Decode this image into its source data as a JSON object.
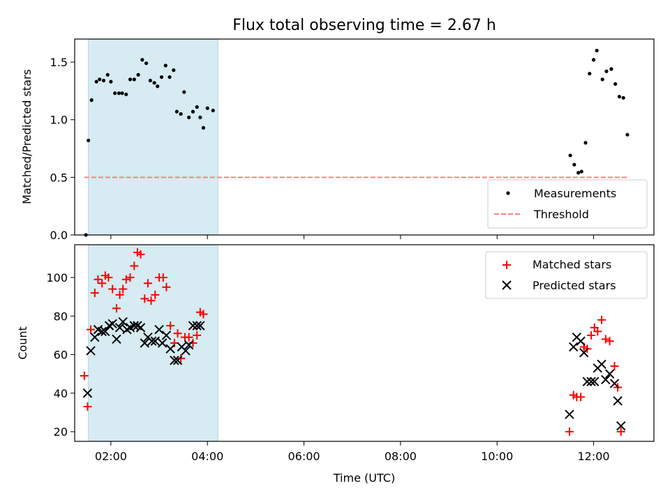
{
  "chart_data": [
    {
      "type": "scatter",
      "title": "Flux total observing time = 2.67 h",
      "xlabel": "",
      "ylabel": "Matched/Predicted stars",
      "xlim": [
        "01:15",
        "13:15"
      ],
      "ylim": [
        0,
        1.7
      ],
      "yticks": [
        "0.0",
        "0.5",
        "1.0",
        "1.5"
      ],
      "highlight_span": {
        "start": "01:32",
        "end": "04:13",
        "color": "#add8e6"
      },
      "legend_position": "lower-right",
      "legend": [
        "Measurements",
        "Threshold"
      ],
      "series": [
        {
          "name": "Measurements",
          "marker": "dot",
          "color": "#000000",
          "points": [
            [
              "01:29",
              0.0
            ],
            [
              "01:32",
              0.82
            ],
            [
              "01:36",
              1.17
            ],
            [
              "01:42",
              1.33
            ],
            [
              "01:46",
              1.35
            ],
            [
              "01:51",
              1.34
            ],
            [
              "01:56",
              1.39
            ],
            [
              "02:00",
              1.33
            ],
            [
              "02:05",
              1.23
            ],
            [
              "02:10",
              1.23
            ],
            [
              "02:14",
              1.23
            ],
            [
              "02:19",
              1.22
            ],
            [
              "02:24",
              1.35
            ],
            [
              "02:29",
              1.35
            ],
            [
              "02:34",
              1.39
            ],
            [
              "02:39",
              1.52
            ],
            [
              "02:44",
              1.49
            ],
            [
              "02:49",
              1.34
            ],
            [
              "02:54",
              1.32
            ],
            [
              "02:58",
              1.29
            ],
            [
              "03:03",
              1.37
            ],
            [
              "03:08",
              1.47
            ],
            [
              "03:13",
              1.37
            ],
            [
              "03:18",
              1.43
            ],
            [
              "03:22",
              1.07
            ],
            [
              "03:27",
              1.05
            ],
            [
              "03:31",
              1.24
            ],
            [
              "03:37",
              1.02
            ],
            [
              "03:42",
              1.07
            ],
            [
              "03:47",
              1.11
            ],
            [
              "03:51",
              1.02
            ],
            [
              "03:55",
              0.93
            ],
            [
              "04:00",
              1.1
            ],
            [
              "04:07",
              1.08
            ],
            [
              "11:31",
              0.69
            ],
            [
              "11:36",
              0.61
            ],
            [
              "11:41",
              0.54
            ],
            [
              "11:45",
              0.55
            ],
            [
              "11:50",
              0.8
            ],
            [
              "11:55",
              1.4
            ],
            [
              "12:00",
              1.52
            ],
            [
              "12:04",
              1.6
            ],
            [
              "12:11",
              1.35
            ],
            [
              "12:16",
              1.42
            ],
            [
              "12:22",
              1.44
            ],
            [
              "12:27",
              1.31
            ],
            [
              "12:32",
              1.2
            ],
            [
              "12:37",
              1.19
            ],
            [
              "12:42",
              0.87
            ]
          ]
        },
        {
          "name": "Threshold",
          "type": "dashed-line",
          "color": "#ff7f7f",
          "points": [
            [
              "01:27",
              0.5
            ],
            [
              "12:43",
              0.5
            ]
          ]
        }
      ]
    },
    {
      "type": "scatter",
      "title": "",
      "xlabel": "Time (UTC)",
      "ylabel": "Count",
      "xlim": [
        "01:15",
        "13:15"
      ],
      "xticks": [
        "02:00",
        "04:00",
        "06:00",
        "08:00",
        "10:00",
        "12:00"
      ],
      "ylim": [
        15,
        117
      ],
      "yticks": [
        20,
        40,
        60,
        80,
        100
      ],
      "highlight_span": {
        "start": "01:32",
        "end": "04:13",
        "color": "#add8e6"
      },
      "legend_position": "upper-right",
      "legend": [
        "Matched stars",
        "Predicted stars"
      ],
      "series": [
        {
          "name": "Matched stars",
          "marker": "plus",
          "color": "#ff0000",
          "points": [
            [
              "01:27",
              49
            ],
            [
              "01:31",
              33
            ],
            [
              "01:35",
              73
            ],
            [
              "01:40",
              92
            ],
            [
              "01:44",
              99
            ],
            [
              "01:49",
              97
            ],
            [
              "01:53",
              101
            ],
            [
              "01:57",
              100
            ],
            [
              "02:02",
              94
            ],
            [
              "02:07",
              84
            ],
            [
              "02:11",
              91
            ],
            [
              "02:15",
              94
            ],
            [
              "02:19",
              99
            ],
            [
              "02:24",
              100
            ],
            [
              "02:29",
              106
            ],
            [
              "02:33",
              113
            ],
            [
              "02:37",
              112
            ],
            [
              "02:42",
              89
            ],
            [
              "02:46",
              97
            ],
            [
              "02:50",
              88
            ],
            [
              "02:55",
              91
            ],
            [
              "03:00",
              100
            ],
            [
              "03:05",
              100
            ],
            [
              "03:09",
              95
            ],
            [
              "03:14",
              75
            ],
            [
              "03:19",
              66
            ],
            [
              "03:23",
              71
            ],
            [
              "03:27",
              58
            ],
            [
              "03:32",
              69
            ],
            [
              "03:37",
              69
            ],
            [
              "03:42",
              66
            ],
            [
              "03:47",
              70
            ],
            [
              "03:51",
              82
            ],
            [
              "03:55",
              81
            ],
            [
              "11:30",
              20
            ],
            [
              "11:35",
              39
            ],
            [
              "11:39",
              38
            ],
            [
              "11:44",
              38
            ],
            [
              "11:48",
              64
            ],
            [
              "11:52",
              63
            ],
            [
              "11:57",
              70
            ],
            [
              "12:01",
              74
            ],
            [
              "12:05",
              72
            ],
            [
              "12:10",
              78
            ],
            [
              "12:15",
              68
            ],
            [
              "12:20",
              67
            ],
            [
              "12:26",
              54
            ],
            [
              "12:30",
              43
            ],
            [
              "12:34",
              20
            ]
          ]
        },
        {
          "name": "Predicted stars",
          "marker": "x",
          "color": "#000000",
          "points": [
            [
              "01:31",
              40
            ],
            [
              "01:35",
              62
            ],
            [
              "01:40",
              69
            ],
            [
              "01:44",
              73
            ],
            [
              "01:49",
              72
            ],
            [
              "01:53",
              72
            ],
            [
              "01:58",
              75
            ],
            [
              "02:02",
              76
            ],
            [
              "02:07",
              68
            ],
            [
              "02:11",
              74
            ],
            [
              "02:15",
              77
            ],
            [
              "02:20",
              73
            ],
            [
              "02:24",
              74
            ],
            [
              "02:29",
              75
            ],
            [
              "02:33",
              75
            ],
            [
              "02:37",
              74
            ],
            [
              "02:42",
              66
            ],
            [
              "02:46",
              69
            ],
            [
              "02:51",
              67
            ],
            [
              "02:55",
              67
            ],
            [
              "03:00",
              73
            ],
            [
              "03:04",
              66
            ],
            [
              "03:09",
              70
            ],
            [
              "03:14",
              63
            ],
            [
              "03:19",
              57
            ],
            [
              "03:23",
              57
            ],
            [
              "03:28",
              64
            ],
            [
              "03:33",
              62
            ],
            [
              "03:37",
              65
            ],
            [
              "03:42",
              75
            ],
            [
              "03:47",
              75
            ],
            [
              "03:51",
              75
            ],
            [
              "11:30",
              29
            ],
            [
              "11:35",
              64
            ],
            [
              "11:39",
              69
            ],
            [
              "11:44",
              67
            ],
            [
              "11:48",
              61
            ],
            [
              "11:52",
              46
            ],
            [
              "11:57",
              46
            ],
            [
              "12:01",
              46
            ],
            [
              "12:05",
              53
            ],
            [
              "12:10",
              55
            ],
            [
              "12:15",
              47
            ],
            [
              "12:20",
              50
            ],
            [
              "12:26",
              45
            ],
            [
              "12:30",
              36
            ],
            [
              "12:34",
              23
            ]
          ]
        }
      ]
    }
  ]
}
